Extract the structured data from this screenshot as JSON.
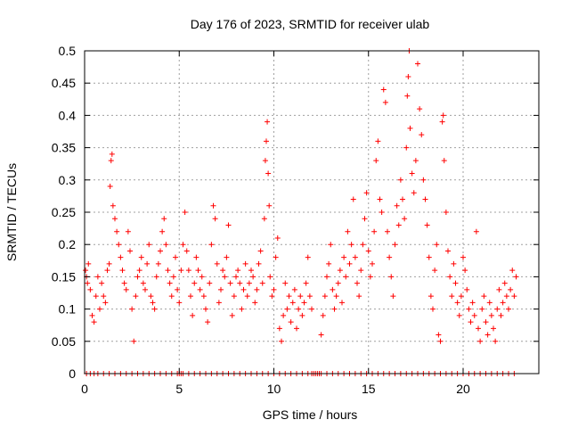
{
  "chart_data": {
    "type": "scatter",
    "title": "Day 176 of 2023, SRMTID for receiver ulab",
    "xlabel": "GPS time / hours",
    "ylabel": "SRMTID / TECUs",
    "xlim": [
      0,
      24
    ],
    "ylim": [
      0,
      0.5
    ],
    "xticks": [
      0,
      5,
      10,
      15,
      20
    ],
    "xtick_labels": [
      "0",
      "5",
      "10",
      "15",
      "20"
    ],
    "yticks": [
      0,
      0.05,
      0.1,
      0.15,
      0.2,
      0.25,
      0.3,
      0.35,
      0.4,
      0.45,
      0.5
    ],
    "ytick_labels": [
      "0",
      "0.05",
      "0.1",
      "0.15",
      "0.2",
      "0.25",
      "0.3",
      "0.35",
      "0.4",
      "0.45",
      "0.5"
    ],
    "grid": true,
    "marker": "+",
    "color": "#ff0000",
    "series": [
      {
        "name": "SRMTID",
        "points": [
          [
            0.05,
            0.16
          ],
          [
            0.1,
            0.15
          ],
          [
            0.15,
            0.14
          ],
          [
            0.2,
            0.17
          ],
          [
            0.3,
            0.13
          ],
          [
            0.4,
            0.09
          ],
          [
            0.5,
            0.08
          ],
          [
            0.6,
            0.12
          ],
          [
            0.7,
            0.15
          ],
          [
            0.8,
            0.1
          ],
          [
            0.9,
            0.14
          ],
          [
            1.0,
            0.12
          ],
          [
            1.1,
            0.11
          ],
          [
            1.2,
            0.16
          ],
          [
            1.3,
            0.17
          ],
          [
            1.35,
            0.29
          ],
          [
            1.4,
            0.33
          ],
          [
            1.45,
            0.34
          ],
          [
            1.5,
            0.26
          ],
          [
            1.6,
            0.24
          ],
          [
            1.7,
            0.22
          ],
          [
            1.8,
            0.2
          ],
          [
            1.9,
            0.18
          ],
          [
            2.0,
            0.16
          ],
          [
            2.1,
            0.14
          ],
          [
            2.2,
            0.13
          ],
          [
            2.3,
            0.22
          ],
          [
            2.4,
            0.19
          ],
          [
            2.5,
            0.1
          ],
          [
            2.6,
            0.05
          ],
          [
            2.7,
            0.12
          ],
          [
            2.8,
            0.15
          ],
          [
            2.9,
            0.16
          ],
          [
            3.0,
            0.18
          ],
          [
            3.1,
            0.14
          ],
          [
            3.2,
            0.13
          ],
          [
            3.3,
            0.17
          ],
          [
            3.4,
            0.2
          ],
          [
            3.5,
            0.12
          ],
          [
            3.6,
            0.11
          ],
          [
            3.7,
            0.1
          ],
          [
            3.8,
            0.15
          ],
          [
            3.9,
            0.17
          ],
          [
            4.0,
            0.19
          ],
          [
            4.1,
            0.22
          ],
          [
            4.2,
            0.24
          ],
          [
            4.3,
            0.2
          ],
          [
            4.4,
            0.16
          ],
          [
            4.5,
            0.14
          ],
          [
            4.6,
            0.12
          ],
          [
            4.7,
            0.15
          ],
          [
            4.8,
            0.18
          ],
          [
            4.9,
            0.13
          ],
          [
            5.0,
            0.11
          ],
          [
            5.1,
            0.16
          ],
          [
            5.2,
            0.2
          ],
          [
            5.3,
            0.25
          ],
          [
            5.4,
            0.19
          ],
          [
            5.5,
            0.16
          ],
          [
            5.6,
            0.12
          ],
          [
            5.7,
            0.09
          ],
          [
            5.8,
            0.14
          ],
          [
            5.9,
            0.18
          ],
          [
            6.0,
            0.16
          ],
          [
            6.1,
            0.13
          ],
          [
            6.2,
            0.15
          ],
          [
            6.3,
            0.12
          ],
          [
            6.4,
            0.1
          ],
          [
            6.5,
            0.08
          ],
          [
            6.6,
            0.14
          ],
          [
            6.7,
            0.2
          ],
          [
            6.8,
            0.26
          ],
          [
            6.9,
            0.24
          ],
          [
            7.0,
            0.17
          ],
          [
            7.1,
            0.11
          ],
          [
            7.2,
            0.13
          ],
          [
            7.3,
            0.16
          ],
          [
            7.4,
            0.15
          ],
          [
            7.5,
            0.18
          ],
          [
            7.6,
            0.23
          ],
          [
            7.7,
            0.14
          ],
          [
            7.8,
            0.09
          ],
          [
            7.9,
            0.12
          ],
          [
            8.0,
            0.15
          ],
          [
            8.1,
            0.16
          ],
          [
            8.2,
            0.14
          ],
          [
            8.3,
            0.1
          ],
          [
            8.4,
            0.13
          ],
          [
            8.5,
            0.17
          ],
          [
            8.6,
            0.12
          ],
          [
            8.7,
            0.14
          ],
          [
            8.8,
            0.16
          ],
          [
            8.9,
            0.15
          ],
          [
            9.0,
            0.11
          ],
          [
            9.1,
            0.13
          ],
          [
            9.2,
            0.17
          ],
          [
            9.3,
            0.19
          ],
          [
            9.4,
            0.14
          ],
          [
            9.5,
            0.24
          ],
          [
            9.55,
            0.33
          ],
          [
            9.6,
            0.36
          ],
          [
            9.65,
            0.39
          ],
          [
            9.7,
            0.31
          ],
          [
            9.75,
            0.26
          ],
          [
            9.8,
            0.15
          ],
          [
            9.9,
            0.12
          ],
          [
            10.0,
            0.13
          ],
          [
            10.1,
            0.18
          ],
          [
            10.2,
            0.21
          ],
          [
            10.3,
            0.07
          ],
          [
            10.4,
            0.05
          ],
          [
            10.5,
            0.09
          ],
          [
            10.6,
            0.14
          ],
          [
            10.7,
            0.1
          ],
          [
            10.8,
            0.12
          ],
          [
            10.9,
            0.08
          ],
          [
            11.0,
            0.11
          ],
          [
            11.1,
            0.13
          ],
          [
            11.2,
            0.07
          ],
          [
            11.3,
            0.1
          ],
          [
            11.4,
            0.12
          ],
          [
            11.5,
            0.09
          ],
          [
            11.6,
            0.11
          ],
          [
            11.7,
            0.14
          ],
          [
            11.8,
            0.18
          ],
          [
            11.9,
            0.12
          ],
          [
            12.0,
            0.1
          ],
          [
            12.5,
            0.06
          ],
          [
            12.6,
            0.09
          ],
          [
            12.7,
            0.12
          ],
          [
            12.8,
            0.15
          ],
          [
            12.9,
            0.17
          ],
          [
            13.0,
            0.2
          ],
          [
            13.1,
            0.13
          ],
          [
            13.2,
            0.1
          ],
          [
            13.3,
            0.12
          ],
          [
            13.4,
            0.14
          ],
          [
            13.5,
            0.16
          ],
          [
            13.6,
            0.11
          ],
          [
            13.7,
            0.18
          ],
          [
            13.8,
            0.15
          ],
          [
            13.9,
            0.22
          ],
          [
            14.0,
            0.17
          ],
          [
            14.1,
            0.2
          ],
          [
            14.2,
            0.27
          ],
          [
            14.3,
            0.18
          ],
          [
            14.4,
            0.14
          ],
          [
            14.5,
            0.12
          ],
          [
            14.6,
            0.16
          ],
          [
            14.7,
            0.2
          ],
          [
            14.8,
            0.24
          ],
          [
            14.9,
            0.28
          ],
          [
            15.0,
            0.19
          ],
          [
            15.1,
            0.15
          ],
          [
            15.2,
            0.17
          ],
          [
            15.3,
            0.22
          ],
          [
            15.4,
            0.33
          ],
          [
            15.5,
            0.36
          ],
          [
            15.6,
            0.27
          ],
          [
            15.7,
            0.25
          ],
          [
            15.8,
            0.44
          ],
          [
            15.9,
            0.42
          ],
          [
            16.0,
            0.22
          ],
          [
            16.1,
            0.18
          ],
          [
            16.2,
            0.15
          ],
          [
            16.3,
            0.12
          ],
          [
            16.4,
            0.2
          ],
          [
            16.5,
            0.26
          ],
          [
            16.6,
            0.23
          ],
          [
            16.7,
            0.3
          ],
          [
            16.8,
            0.27
          ],
          [
            16.9,
            0.24
          ],
          [
            17.0,
            0.35
          ],
          [
            17.05,
            0.43
          ],
          [
            17.1,
            0.46
          ],
          [
            17.15,
            0.5
          ],
          [
            17.2,
            0.38
          ],
          [
            17.3,
            0.31
          ],
          [
            17.4,
            0.28
          ],
          [
            17.5,
            0.33
          ],
          [
            17.6,
            0.48
          ],
          [
            17.7,
            0.41
          ],
          [
            17.8,
            0.37
          ],
          [
            17.9,
            0.3
          ],
          [
            18.0,
            0.27
          ],
          [
            18.1,
            0.23
          ],
          [
            18.2,
            0.18
          ],
          [
            18.3,
            0.12
          ],
          [
            18.4,
            0.1
          ],
          [
            18.5,
            0.16
          ],
          [
            18.6,
            0.2
          ],
          [
            18.7,
            0.06
          ],
          [
            18.8,
            0.05
          ],
          [
            18.9,
            0.39
          ],
          [
            18.95,
            0.4
          ],
          [
            19.0,
            0.33
          ],
          [
            19.1,
            0.25
          ],
          [
            19.2,
            0.19
          ],
          [
            19.3,
            0.15
          ],
          [
            19.4,
            0.12
          ],
          [
            19.5,
            0.17
          ],
          [
            19.6,
            0.14
          ],
          [
            19.7,
            0.11
          ],
          [
            19.8,
            0.09
          ],
          [
            19.9,
            0.12
          ],
          [
            20.0,
            0.18
          ],
          [
            20.1,
            0.16
          ],
          [
            20.2,
            0.13
          ],
          [
            20.3,
            0.1
          ],
          [
            20.4,
            0.08
          ],
          [
            20.5,
            0.11
          ],
          [
            20.6,
            0.09
          ],
          [
            20.7,
            0.22
          ],
          [
            20.8,
            0.07
          ],
          [
            20.9,
            0.05
          ],
          [
            21.0,
            0.1
          ],
          [
            21.1,
            0.12
          ],
          [
            21.2,
            0.08
          ],
          [
            21.3,
            0.06
          ],
          [
            21.4,
            0.11
          ],
          [
            21.5,
            0.09
          ],
          [
            21.6,
            0.07
          ],
          [
            21.7,
            0.05
          ],
          [
            21.8,
            0.1
          ],
          [
            21.9,
            0.13
          ],
          [
            22.0,
            0.09
          ],
          [
            22.1,
            0.11
          ],
          [
            22.2,
            0.14
          ],
          [
            22.3,
            0.12
          ],
          [
            22.4,
            0.1
          ],
          [
            22.5,
            0.13
          ],
          [
            22.6,
            0.16
          ],
          [
            22.7,
            0.12
          ],
          [
            22.8,
            0.15
          ]
        ]
      },
      {
        "name": "zero-level",
        "points": [
          [
            0.1,
            0
          ],
          [
            0.3,
            0
          ],
          [
            0.5,
            0
          ],
          [
            0.7,
            0
          ],
          [
            1.0,
            0
          ],
          [
            1.3,
            0
          ],
          [
            1.6,
            0
          ],
          [
            1.9,
            0
          ],
          [
            2.2,
            0
          ],
          [
            2.5,
            0
          ],
          [
            2.8,
            0
          ],
          [
            3.1,
            0
          ],
          [
            3.4,
            0
          ],
          [
            3.7,
            0
          ],
          [
            4.0,
            0
          ],
          [
            4.3,
            0
          ],
          [
            4.6,
            0
          ],
          [
            4.9,
            0
          ],
          [
            5.0,
            0
          ],
          [
            5.1,
            0
          ],
          [
            5.2,
            0
          ],
          [
            5.5,
            0
          ],
          [
            5.8,
            0
          ],
          [
            6.1,
            0
          ],
          [
            6.4,
            0
          ],
          [
            6.7,
            0
          ],
          [
            7.0,
            0
          ],
          [
            7.3,
            0
          ],
          [
            7.6,
            0
          ],
          [
            7.9,
            0
          ],
          [
            8.2,
            0
          ],
          [
            8.5,
            0
          ],
          [
            8.8,
            0
          ],
          [
            9.1,
            0
          ],
          [
            9.4,
            0
          ],
          [
            9.7,
            0
          ],
          [
            10.0,
            0
          ],
          [
            10.3,
            0
          ],
          [
            10.6,
            0
          ],
          [
            10.9,
            0
          ],
          [
            11.2,
            0
          ],
          [
            11.5,
            0
          ],
          [
            11.8,
            0
          ],
          [
            12.0,
            0
          ],
          [
            12.1,
            0
          ],
          [
            12.2,
            0
          ],
          [
            12.3,
            0
          ],
          [
            12.4,
            0
          ],
          [
            12.5,
            0
          ],
          [
            12.8,
            0
          ],
          [
            13.1,
            0
          ],
          [
            13.4,
            0
          ],
          [
            13.7,
            0
          ],
          [
            14.0,
            0
          ],
          [
            14.3,
            0
          ],
          [
            14.6,
            0
          ],
          [
            14.9,
            0
          ],
          [
            15.2,
            0
          ],
          [
            15.5,
            0
          ],
          [
            15.8,
            0
          ],
          [
            16.1,
            0
          ],
          [
            16.4,
            0
          ],
          [
            16.7,
            0
          ],
          [
            17.0,
            0
          ],
          [
            17.3,
            0
          ],
          [
            17.6,
            0
          ],
          [
            17.9,
            0
          ],
          [
            18.2,
            0
          ],
          [
            18.5,
            0
          ],
          [
            18.8,
            0
          ],
          [
            19.1,
            0
          ],
          [
            19.4,
            0
          ],
          [
            19.7,
            0
          ],
          [
            20.0,
            0
          ],
          [
            20.3,
            0
          ],
          [
            20.6,
            0
          ],
          [
            20.9,
            0
          ],
          [
            21.2,
            0
          ],
          [
            21.5,
            0
          ],
          [
            21.8,
            0
          ],
          [
            22.1,
            0
          ],
          [
            22.4,
            0
          ],
          [
            22.7,
            0
          ]
        ]
      }
    ]
  }
}
